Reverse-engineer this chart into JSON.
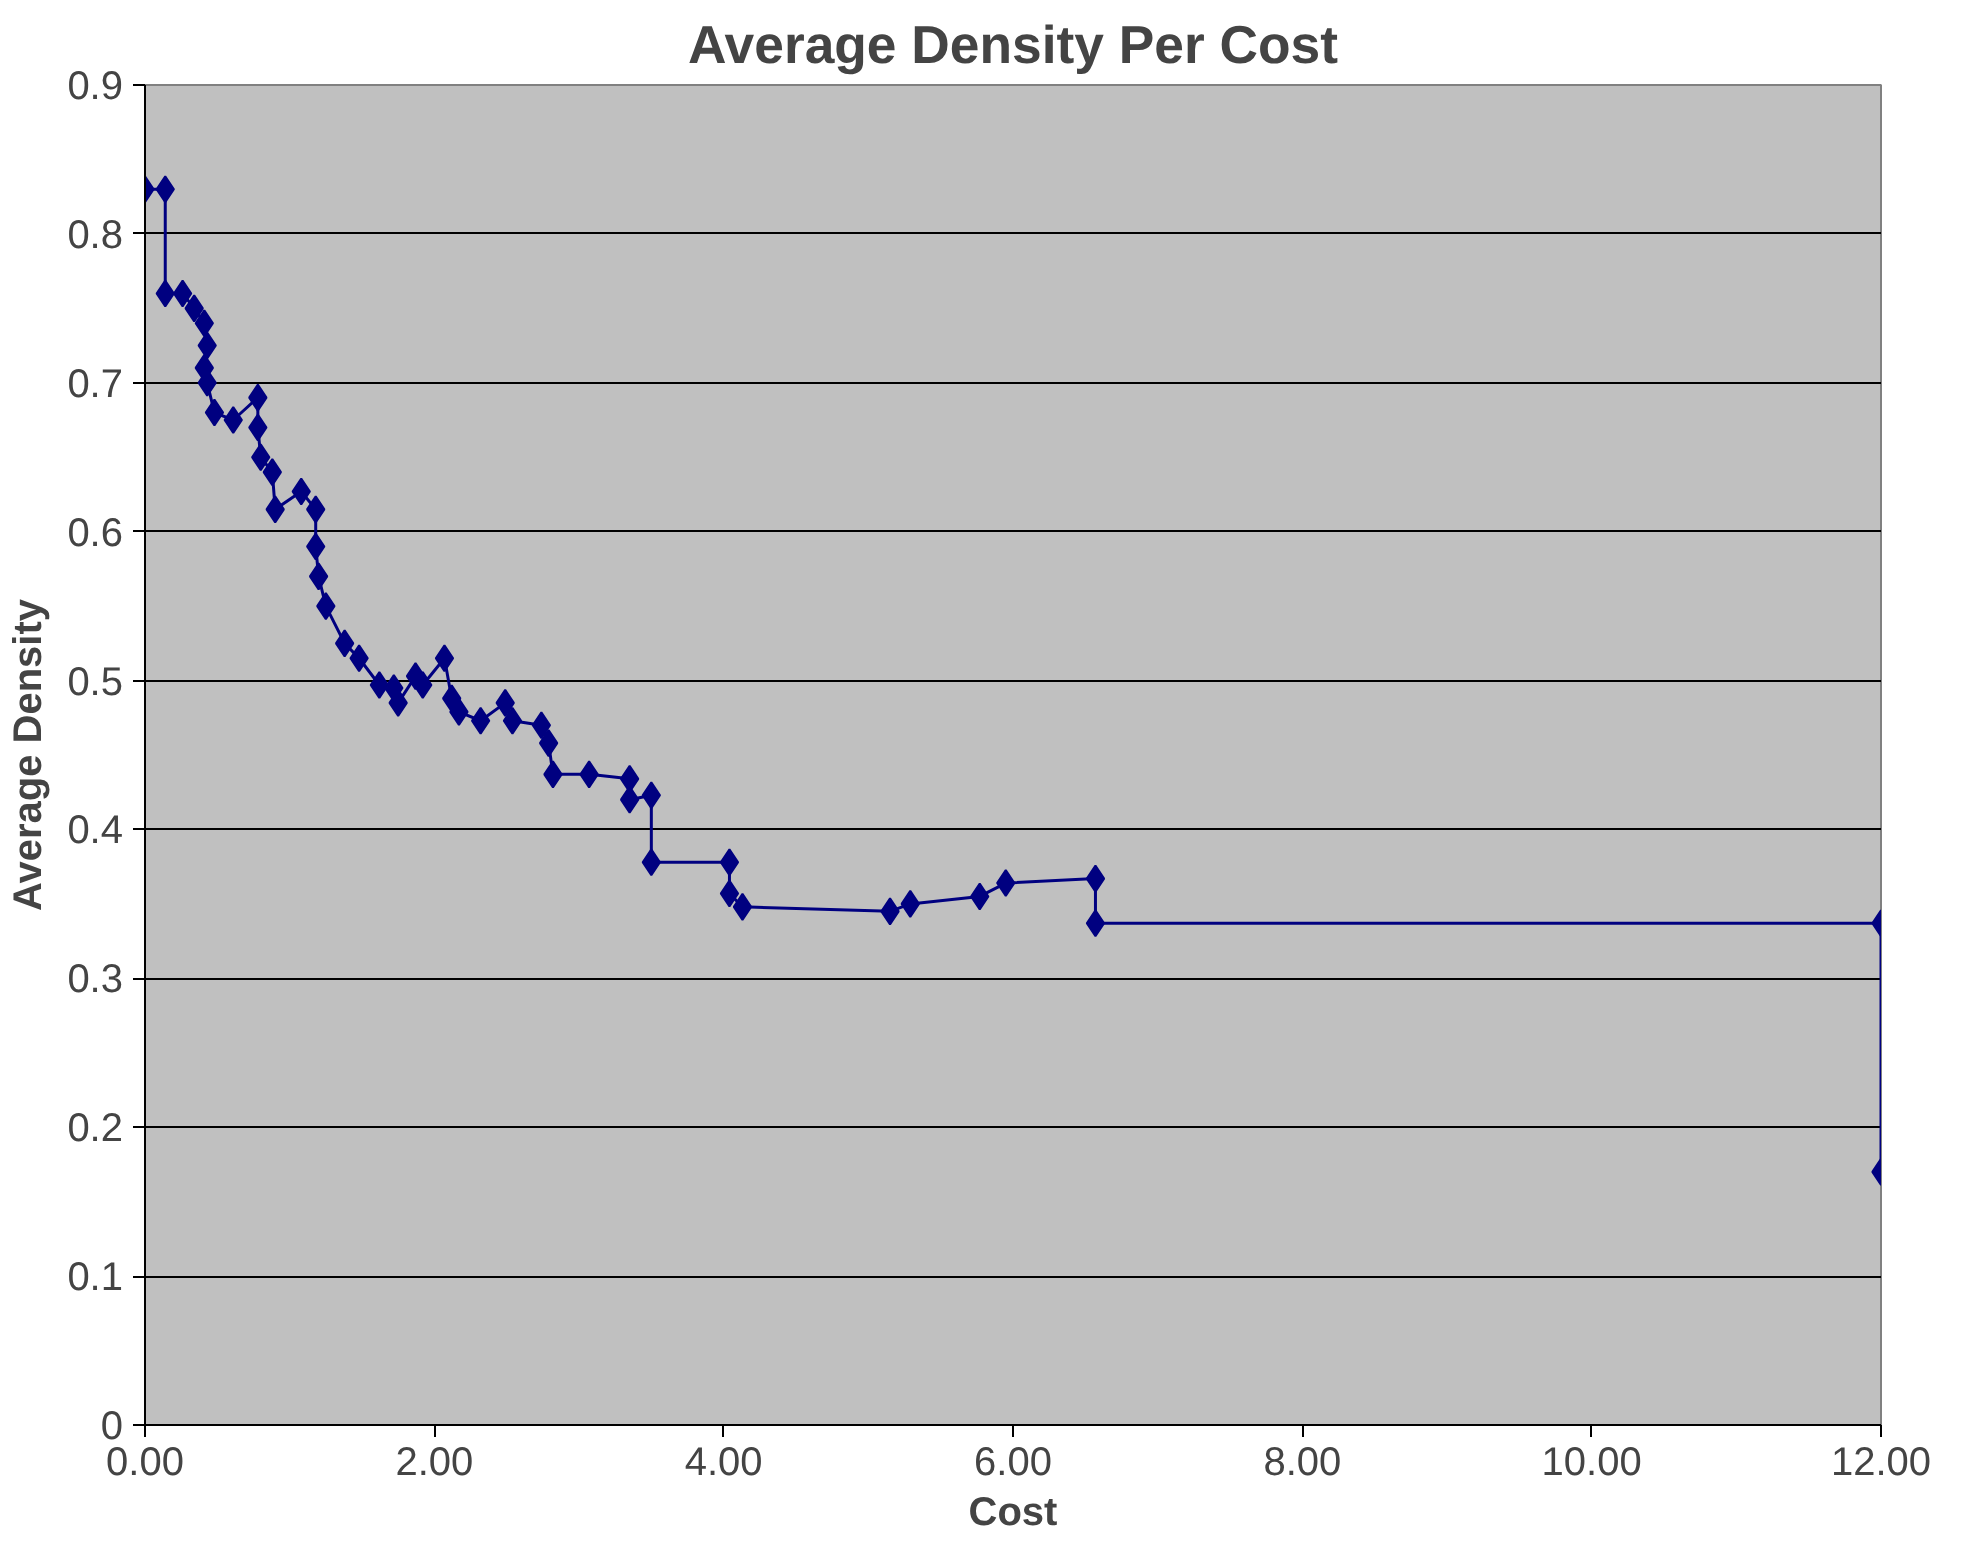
{
  "chart_data": {
    "type": "line",
    "title": "Average Density Per Cost",
    "xlabel": "Cost",
    "ylabel": "Average Density",
    "x": [
      0,
      0.14,
      0.14,
      0.26,
      0.34,
      0.41,
      0.43,
      0.41,
      0.43,
      0.48,
      0.61,
      0.78,
      0.78,
      0.8,
      0.88,
      0.9,
      1.08,
      1.18,
      1.18,
      1.2,
      1.25,
      1.38,
      1.48,
      1.62,
      1.72,
      1.75,
      1.87,
      1.92,
      2.07,
      2.12,
      2.17,
      2.32,
      2.49,
      2.54,
      2.74,
      2.79,
      2.82,
      3.07,
      3.35,
      3.35,
      3.5,
      3.5,
      4.04,
      4.04,
      4.13,
      5.15,
      5.29,
      5.77,
      5.95,
      6.57,
      6.57,
      12,
      12
    ],
    "series": [
      {
        "color": "#000080",
        "values": [
          0.83,
          0.83,
          0.76,
          0.76,
          0.75,
          0.74,
          0.725,
          0.71,
          0.7,
          0.68,
          0.675,
          0.69,
          0.67,
          0.65,
          0.64,
          0.615,
          0.627,
          0.615,
          0.59,
          0.57,
          0.55,
          0.525,
          0.515,
          0.497,
          0.495,
          0.485,
          0.503,
          0.497,
          0.515,
          0.488,
          0.479,
          0.473,
          0.485,
          0.473,
          0.47,
          0.458,
          0.437,
          0.437,
          0.434,
          0.42,
          0.423,
          0.378,
          0.378,
          0.357,
          0.348,
          0.345,
          0.35,
          0.355,
          0.364,
          0.367,
          0.337,
          0.337,
          0.17
        ]
      }
    ],
    "xlim": [
      0,
      12
    ],
    "xticks": [
      {
        "value": 0,
        "label": "0.00"
      },
      {
        "value": 2,
        "label": "2.00"
      },
      {
        "value": 4,
        "label": "4.00"
      },
      {
        "value": 6,
        "label": "6.00"
      },
      {
        "value": 8,
        "label": "8.00"
      },
      {
        "value": 10,
        "label": "10.00"
      },
      {
        "value": 12,
        "label": "12.00"
      }
    ],
    "ylim": [
      0,
      0.9
    ],
    "yticks": [
      0,
      0.1,
      0.2,
      0.3,
      0.4,
      0.5,
      0.6,
      0.7,
      0.8,
      0.9
    ],
    "grid": "y",
    "marker": "diamond",
    "line_style": "solid"
  }
}
